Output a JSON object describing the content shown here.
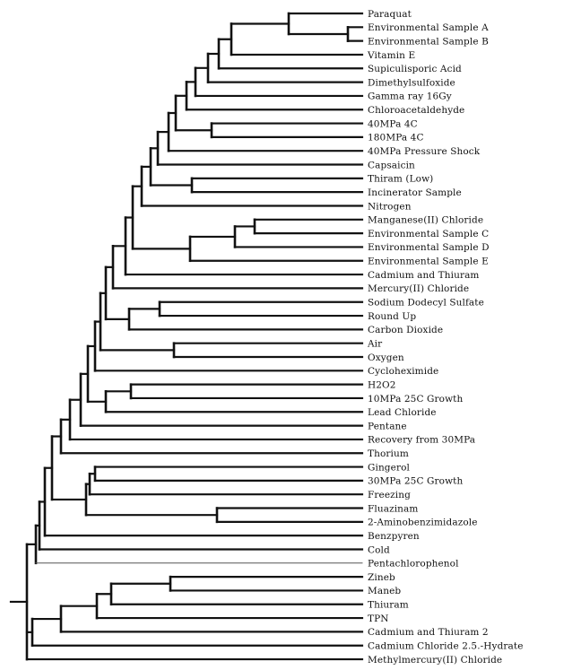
{
  "labels": [
    "Paraquat",
    "Environmental Sample A",
    "Environmental Sample B",
    "Vitamin E",
    "Supiculisporic Acid",
    "Dimethylsulfoxide",
    "Gamma ray 16Gy",
    "Chloroacetaldehyde",
    "40MPa 4C",
    "180MPa 4C",
    "40MPa Pressure Shock",
    "Capsaicin",
    "Thiram (Low)",
    "Incinerator Sample",
    "Nitrogen",
    "Manganese(II) Chloride",
    "Environmental Sample C",
    "Environmental Sample D",
    "Environmental Sample E",
    "Cadmium and Thiuram",
    "Mercury(II) Chloride",
    "Sodium Dodecyl Sulfate",
    "Round Up",
    "Carbon Dioxide",
    "Air",
    "Oxygen",
    "Cycloheximide",
    "H2O2",
    "10MPa 25C Growth",
    "Lead Chloride",
    "Pentane",
    "Recovery from 30MPa",
    "Thorium",
    "Gingerol",
    "30MPa 25C Growth",
    "Freezing",
    "Fluazinam",
    "2-Aminobenzimidazole",
    "Benzpyren",
    "Cold",
    "Pentachlorophenol",
    "Zineb",
    "Maneb",
    "Thiuram",
    "TPN",
    "Cadmium and Thiuram 2",
    "Cadmium Chloride 2.5.-Hydrate",
    "Methylmercury(II) Chloride"
  ],
  "colors": {
    "line": "#111111",
    "thin_line": "#555555",
    "text": "#111111"
  }
}
